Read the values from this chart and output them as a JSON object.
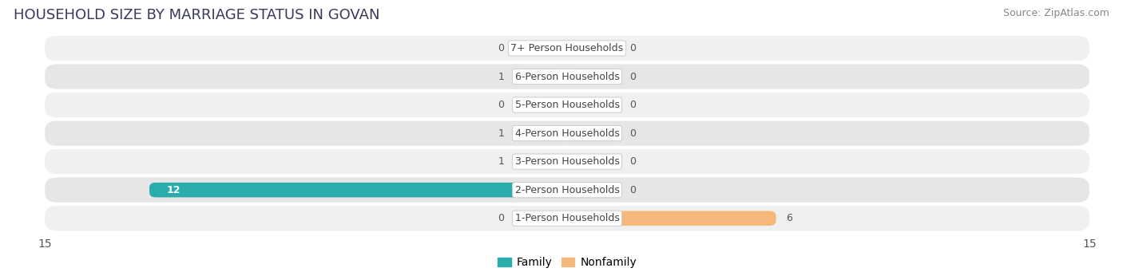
{
  "title": "HOUSEHOLD SIZE BY MARRIAGE STATUS IN GOVAN",
  "source": "Source: ZipAtlas.com",
  "categories": [
    "7+ Person Households",
    "6-Person Households",
    "5-Person Households",
    "4-Person Households",
    "3-Person Households",
    "2-Person Households",
    "1-Person Households"
  ],
  "family": [
    0,
    1,
    0,
    1,
    1,
    12,
    0
  ],
  "nonfamily": [
    0,
    0,
    0,
    0,
    0,
    0,
    6
  ],
  "family_color_small": "#7DCFCF",
  "family_color_large": "#2AACAC",
  "nonfamily_color": "#F5B87A",
  "xlim": 15,
  "bar_height": 0.52,
  "label_fontsize": 9,
  "cat_fontsize": 9,
  "title_fontsize": 13,
  "source_fontsize": 9,
  "row_colors": [
    "#f0f0f0",
    "#e6e6e6"
  ],
  "fig_bg": "#ffffff",
  "label_color": "#555555",
  "title_color": "#3a3a5c",
  "min_bar_width": 1.5,
  "legend_family": "Family",
  "legend_nonfamily": "Nonfamily"
}
